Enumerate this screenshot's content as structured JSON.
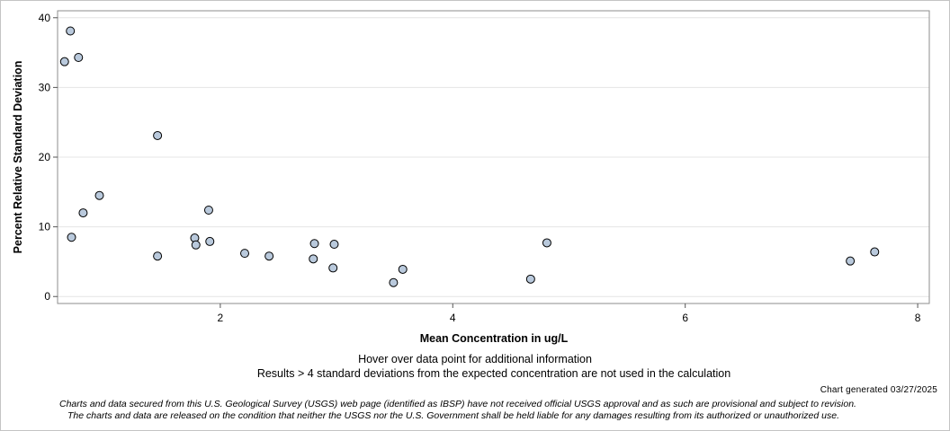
{
  "chart_data": {
    "type": "scatter",
    "title": "",
    "xlabel": "Mean Concentration in ug/L",
    "ylabel": "Percent Relative Standard Deviation",
    "xlim": [
      0.6,
      8.1
    ],
    "ylim": [
      -1,
      41
    ],
    "xticks": [
      2,
      4,
      6,
      8
    ],
    "yticks": [
      0,
      10,
      20,
      30,
      40
    ],
    "grid": "horizontal",
    "marker_fill": "#b9c9dc",
    "marker_stroke": "#000000",
    "points": [
      {
        "x": 0.66,
        "y": 33.7
      },
      {
        "x": 0.71,
        "y": 38.1
      },
      {
        "x": 0.72,
        "y": 8.5
      },
      {
        "x": 0.78,
        "y": 34.3
      },
      {
        "x": 0.82,
        "y": 12.0
      },
      {
        "x": 0.96,
        "y": 14.5
      },
      {
        "x": 1.46,
        "y": 23.1
      },
      {
        "x": 1.46,
        "y": 5.8
      },
      {
        "x": 1.78,
        "y": 8.4
      },
      {
        "x": 1.79,
        "y": 7.4
      },
      {
        "x": 1.9,
        "y": 12.4
      },
      {
        "x": 1.91,
        "y": 7.9
      },
      {
        "x": 2.21,
        "y": 6.2
      },
      {
        "x": 2.42,
        "y": 5.8
      },
      {
        "x": 2.8,
        "y": 5.4
      },
      {
        "x": 2.81,
        "y": 7.6
      },
      {
        "x": 2.97,
        "y": 4.1
      },
      {
        "x": 2.98,
        "y": 7.5
      },
      {
        "x": 3.49,
        "y": 2.0
      },
      {
        "x": 3.57,
        "y": 3.9
      },
      {
        "x": 4.67,
        "y": 2.5
      },
      {
        "x": 4.81,
        "y": 7.7
      },
      {
        "x": 7.42,
        "y": 5.1
      },
      {
        "x": 7.63,
        "y": 6.4
      }
    ]
  },
  "notes": {
    "hover": "Hover over data point for additional information",
    "results": "Results > 4 standard deviations from the expected concentration are not used in the calculation",
    "generated": "Chart generated 03/27/2025",
    "disclaimer_line1": "Charts and data secured from this U.S. Geological Survey (USGS) web page (identified as IBSP) have not received official USGS approval and as such are provisional and subject to revision.",
    "disclaimer_line2": "The charts and data are released on the condition that neither the USGS nor the U.S. Government shall be held liable for any damages resulting from its authorized or unauthorized use."
  }
}
